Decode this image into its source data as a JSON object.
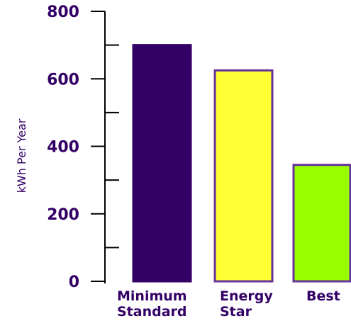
{
  "colors": {
    "text": "#330066",
    "axis": "#000000"
  },
  "chart_data": {
    "type": "bar",
    "title": "",
    "xlabel": "",
    "ylabel": "kWh Per Year",
    "ylim": [
      0,
      800
    ],
    "major_ticks": [
      0,
      200,
      400,
      600,
      800
    ],
    "minor_tick_step": 100,
    "grid": false,
    "legend": "none",
    "categories": [
      {
        "lines": [
          "Minimum",
          "Standard"
        ],
        "value": 700,
        "color": "#330066",
        "stroke": "#330066"
      },
      {
        "lines": [
          "Energy",
          "Star"
        ],
        "value": 625,
        "color": "#ffff33",
        "stroke": "#663399"
      },
      {
        "lines": [
          "Best"
        ],
        "value": 345,
        "color": "#99ff00",
        "stroke": "#663399"
      }
    ]
  }
}
